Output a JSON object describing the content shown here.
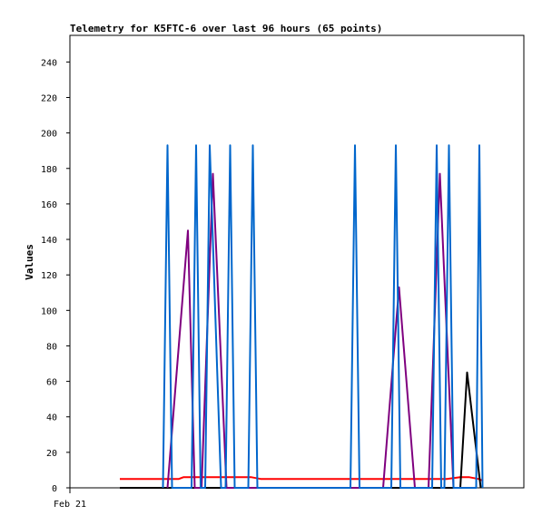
{
  "chart_data": {
    "type": "line",
    "title": "Telemetry for K5FTC-6 over last 96 hours (65 points)",
    "xlabel": "",
    "ylabel": "Values",
    "ylim": [
      0,
      255
    ],
    "xlim": [
      0,
      100
    ],
    "yticks": [
      0,
      20,
      40,
      60,
      80,
      100,
      120,
      140,
      160,
      180,
      200,
      220,
      240
    ],
    "xticks": [
      {
        "x": 0,
        "label": "Feb 21"
      }
    ],
    "grid": false,
    "legend": "none",
    "series": [
      {
        "color": "#ff0000",
        "x": [
          11,
          24,
          25,
          40,
          42,
          55,
          83,
          86,
          88,
          90,
          91
        ],
        "y": [
          5,
          5,
          6,
          6,
          5,
          5,
          5,
          6,
          6,
          5,
          4
        ]
      },
      {
        "color": "#000000",
        "x": [
          11,
          86,
          87.5,
          90.5
        ],
        "y": [
          0,
          0,
          65,
          0
        ]
      },
      {
        "color": "#7f007f",
        "x": [
          21.5,
          26,
          27.5,
          29,
          31.5,
          34.5,
          69,
          72.5,
          76,
          79,
          81.5,
          84.5
        ],
        "y": [
          0,
          145,
          0,
          0,
          177,
          0,
          0,
          113,
          0,
          0,
          177,
          0
        ]
      },
      {
        "color": "#0066cc",
        "x": [
          20.5,
          21.5,
          22.5,
          26.8,
          27.8,
          28.8,
          29.8,
          30.8,
          33.3,
          34.3,
          35.3,
          36.3,
          37.3,
          39.3,
          40.3,
          41.3,
          61.8,
          62.8,
          63.8,
          70.8,
          71.8,
          72.8,
          79.8,
          80.8,
          81.8,
          82.5,
          83.5,
          84.5,
          89.5,
          90.2,
          90.9
        ],
        "y": [
          0,
          193,
          0,
          0,
          193,
          0,
          0,
          193,
          0,
          0,
          193,
          0,
          0,
          0,
          193,
          0,
          0,
          193,
          0,
          0,
          193,
          0,
          0,
          193,
          0,
          0,
          193,
          0,
          0,
          193,
          0
        ]
      }
    ]
  }
}
